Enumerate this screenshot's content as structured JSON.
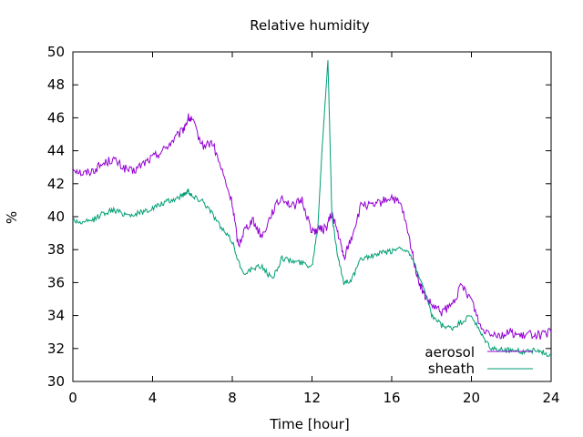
{
  "chart_data": {
    "type": "line",
    "title": "Relative humidity",
    "xlabel": "Time [hour]",
    "ylabel": "%",
    "xlim": [
      0,
      24
    ],
    "ylim": [
      30,
      50
    ],
    "xticks": [
      0,
      4,
      8,
      12,
      16,
      20,
      24
    ],
    "yticks": [
      30,
      32,
      34,
      36,
      38,
      40,
      42,
      44,
      46,
      48,
      50
    ],
    "grid": false,
    "legend_position": "bottom-right",
    "series": [
      {
        "name": "aerosol",
        "color": "#9400d3",
        "x": [
          0,
          0.5,
          1,
          1.5,
          2,
          2.5,
          3,
          3.5,
          4,
          4.5,
          5,
          5.5,
          5.8,
          6,
          6.5,
          7,
          7.5,
          8,
          8.3,
          8.6,
          9,
          9.5,
          10,
          10.5,
          11,
          11.5,
          12,
          12.3,
          12.7,
          13,
          13.3,
          13.6,
          14,
          14.5,
          15,
          15.5,
          16,
          16.5,
          17,
          17.3,
          17.6,
          18,
          18.5,
          19,
          19.5,
          20,
          20.5,
          21,
          21.5,
          22,
          22.5,
          23,
          23.5,
          24
        ],
        "values": [
          43,
          42.6,
          42.8,
          43.2,
          43.5,
          43,
          42.7,
          43.2,
          43.6,
          44,
          44.6,
          45.2,
          46,
          45.8,
          44.3,
          44.5,
          42.7,
          40.8,
          38.2,
          39.2,
          39.8,
          38.8,
          40.3,
          41.2,
          40.6,
          41,
          39.1,
          39.2,
          39.3,
          40.2,
          39,
          37.5,
          38.8,
          40.8,
          40.6,
          40.9,
          41.2,
          40.6,
          38,
          36.3,
          35.3,
          34.6,
          34.2,
          34.6,
          35.8,
          35,
          33.2,
          33,
          32.8,
          33,
          32.7,
          32.9,
          32.8,
          33
        ]
      },
      {
        "name": "sheath",
        "color": "#009e73",
        "x": [
          0,
          0.5,
          1,
          1.5,
          2,
          2.5,
          3,
          3.5,
          4,
          4.5,
          5,
          5.5,
          5.8,
          6,
          6.5,
          7,
          7.5,
          8,
          8.5,
          9,
          9.5,
          10,
          10.5,
          11,
          11.5,
          12,
          12.3,
          12.5,
          12.8,
          13,
          13.3,
          13.6,
          14,
          14.5,
          15,
          15.5,
          16,
          16.5,
          17,
          17.5,
          18,
          18.5,
          19,
          19.5,
          20,
          20.5,
          21,
          21.5,
          22,
          22.5,
          23,
          23.5,
          24
        ],
        "values": [
          39.8,
          39.6,
          39.8,
          40.2,
          40.4,
          40.2,
          40.1,
          40.3,
          40.5,
          40.8,
          41,
          41.3,
          41.6,
          41.2,
          41,
          40.2,
          39.2,
          38.5,
          36.6,
          36.8,
          37,
          36.2,
          37.5,
          37.3,
          37.2,
          37,
          39.5,
          44,
          49.5,
          40,
          37.5,
          36,
          36.2,
          37.5,
          37.6,
          37.8,
          37.9,
          38.2,
          37.5,
          36,
          34,
          33.4,
          33.2,
          33.6,
          34,
          32.8,
          32,
          31.9,
          31.9,
          31.8,
          31.9,
          31.8,
          31.6
        ]
      }
    ]
  }
}
